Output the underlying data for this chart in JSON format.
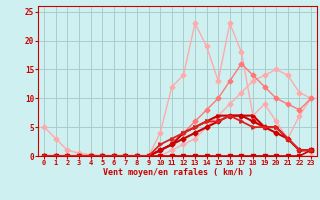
{
  "bg_color": "#cff0f0",
  "grid_color": "#aacccc",
  "line_color_dark": "#cc0000",
  "xlabel": "Vent moyen/en rafales ( km/h )",
  "xlabel_color": "#cc0000",
  "tick_color": "#cc0000",
  "xlim": [
    -0.5,
    23.5
  ],
  "ylim": [
    0,
    26
  ],
  "yticks": [
    0,
    5,
    10,
    15,
    20,
    25
  ],
  "xticks": [
    0,
    1,
    2,
    3,
    4,
    5,
    6,
    7,
    8,
    9,
    10,
    11,
    12,
    13,
    14,
    15,
    16,
    17,
    18,
    19,
    20,
    21,
    22,
    23
  ],
  "series": [
    {
      "x": [
        0,
        1,
        2,
        3,
        4,
        5,
        6,
        7,
        8,
        9,
        10,
        11,
        12,
        13,
        14,
        15,
        16,
        17,
        18,
        19,
        20,
        21,
        22,
        23
      ],
      "y": [
        0,
        0,
        0,
        0,
        0,
        0,
        0,
        0,
        0,
        0,
        0,
        1,
        2,
        3,
        5,
        7,
        9,
        11,
        13,
        14,
        15,
        14,
        11,
        10
      ],
      "color": "#ffaaaa",
      "lw": 1.0,
      "marker": "D",
      "ms": 2.5
    },
    {
      "x": [
        0,
        1,
        2,
        3,
        4,
        5,
        6,
        7,
        8,
        9,
        10,
        11,
        12,
        13,
        14,
        15,
        16,
        17,
        18,
        19,
        20,
        21,
        22,
        23
      ],
      "y": [
        0,
        0,
        0,
        0,
        0,
        0,
        0,
        0,
        0,
        0,
        4,
        12,
        14,
        23,
        19,
        13,
        23,
        18,
        7,
        9,
        6,
        3,
        7,
        10
      ],
      "color": "#ffaaaa",
      "lw": 1.0,
      "marker": "D",
      "ms": 2.5
    },
    {
      "x": [
        0,
        1,
        2,
        3,
        4,
        5,
        6,
        7,
        8,
        9,
        10,
        11,
        12,
        13,
        14,
        15,
        16,
        17,
        18,
        19,
        20,
        21,
        22,
        23
      ],
      "y": [
        0,
        0,
        0,
        0,
        0,
        0,
        0,
        0,
        0,
        0,
        1,
        2,
        4,
        6,
        8,
        10,
        13,
        16,
        14,
        12,
        10,
        9,
        8,
        10
      ],
      "color": "#ff7777",
      "lw": 1.0,
      "marker": "D",
      "ms": 2.5
    },
    {
      "x": [
        0,
        1,
        2,
        3,
        4,
        5,
        6,
        7,
        8,
        9,
        10,
        11,
        12,
        13,
        14,
        15,
        16,
        17,
        18,
        19,
        20,
        21,
        22,
        23
      ],
      "y": [
        5,
        3,
        1,
        0.5,
        0.2,
        0,
        0,
        0,
        0,
        0,
        0,
        0,
        0,
        0,
        0,
        0,
        0,
        0,
        0,
        0,
        0,
        0,
        0,
        0
      ],
      "color": "#ffaaaa",
      "lw": 1.0,
      "marker": "D",
      "ms": 2.5
    },
    {
      "x": [
        0,
        1,
        2,
        3,
        4,
        5,
        6,
        7,
        8,
        9,
        10,
        11,
        12,
        13,
        14,
        15,
        16,
        17,
        18,
        19,
        20,
        21,
        22,
        23
      ],
      "y": [
        0,
        0,
        0,
        0,
        0,
        0,
        0,
        0,
        0,
        0,
        0,
        0,
        0,
        0,
        0,
        0,
        0,
        0,
        0,
        0,
        0,
        0,
        0,
        1
      ],
      "color": "#cc0000",
      "lw": 1.2,
      "marker": "s",
      "ms": 2.5
    },
    {
      "x": [
        0,
        1,
        2,
        3,
        4,
        5,
        6,
        7,
        8,
        9,
        10,
        11,
        12,
        13,
        14,
        15,
        16,
        17,
        18,
        19,
        20,
        21,
        22,
        23
      ],
      "y": [
        0,
        0,
        0,
        0,
        0,
        0,
        0,
        0,
        0,
        0,
        1,
        2,
        3,
        4,
        5,
        6,
        7,
        7,
        6,
        5,
        4,
        3,
        1,
        1
      ],
      "color": "#cc0000",
      "lw": 1.5,
      "marker": "D",
      "ms": 2.5
    },
    {
      "x": [
        0,
        1,
        2,
        3,
        4,
        5,
        6,
        7,
        8,
        9,
        10,
        11,
        12,
        13,
        14,
        15,
        16,
        17,
        18,
        19,
        20,
        21,
        22,
        23
      ],
      "y": [
        0,
        0,
        0,
        0,
        0,
        0,
        0,
        0,
        0,
        0,
        1,
        2,
        4,
        5,
        6,
        7,
        7,
        7,
        7,
        5,
        5,
        3,
        1,
        1
      ],
      "color": "#cc0000",
      "lw": 1.5,
      "marker": ">",
      "ms": 2.5
    },
    {
      "x": [
        0,
        1,
        2,
        3,
        4,
        5,
        6,
        7,
        8,
        9,
        10,
        11,
        12,
        13,
        14,
        15,
        16,
        17,
        18,
        19,
        20,
        21,
        22,
        23
      ],
      "y": [
        0,
        0,
        0,
        0,
        0,
        0,
        0,
        0,
        0,
        0,
        2,
        3,
        4,
        5,
        6,
        6,
        7,
        6,
        5,
        5,
        5,
        3,
        1,
        1
      ],
      "color": "#dd2222",
      "lw": 1.3,
      "marker": ">",
      "ms": 2.5
    }
  ]
}
